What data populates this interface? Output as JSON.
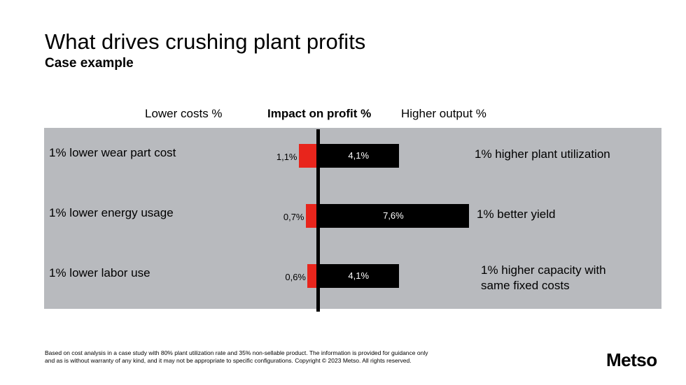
{
  "chart_data": {
    "type": "bar",
    "title": "What drives crushing plant profits",
    "subtitle": "Case example",
    "headers": {
      "left": "Lower costs %",
      "center": "Impact on profit %",
      "right": "Higher output %"
    },
    "rows": [
      {
        "cost_label": "1% lower wear part cost",
        "cost_value": 1.1,
        "cost_text": "1,1%",
        "output_value": 4.1,
        "output_text": "4,1%",
        "output_label": "1% higher plant utilization"
      },
      {
        "cost_label": "1% lower energy usage",
        "cost_value": 0.7,
        "cost_text": "0,7%",
        "output_value": 7.6,
        "output_text": "7,6%",
        "output_label": "1% better yield"
      },
      {
        "cost_label": "1% lower labor use",
        "cost_value": 0.6,
        "cost_text": "0,6%",
        "output_value": 4.1,
        "output_text": "4,1%",
        "output_label": "1% higher capacity with same fixed costs"
      }
    ],
    "colors": {
      "cost": "#e8251c",
      "output": "#000000",
      "panel": "#b8babe"
    }
  },
  "footnote": "Based on cost analysis in a case study with 80% plant utilization  rate and 35% non-sellable product. The information is provided for guidance only and as is without warranty of any kind, and it may not be appropriate to specific configurations. Copyright © 2023 Metso. All rights reserved.",
  "logo": "Metso"
}
